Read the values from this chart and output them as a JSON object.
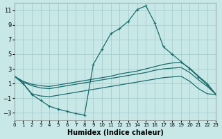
{
  "xlabel": "Humidex (Indice chaleur)",
  "bg_color": "#c8e8e8",
  "grid_color": "#a8cccc",
  "line_color": "#1a6b6b",
  "xlim": [
    0,
    23
  ],
  "ylim": [
    -4,
    12
  ],
  "yticks": [
    -3,
    -1,
    1,
    3,
    5,
    7,
    9,
    11
  ],
  "xticks": [
    0,
    1,
    2,
    3,
    4,
    5,
    6,
    7,
    8,
    9,
    10,
    11,
    12,
    13,
    14,
    15,
    16,
    17,
    18,
    19,
    20,
    21,
    22,
    23
  ],
  "main_x": [
    0,
    1,
    2,
    3,
    4,
    5,
    6,
    7,
    8,
    9,
    10,
    11,
    12,
    13,
    14,
    15,
    16,
    17,
    18,
    19,
    20,
    21,
    22,
    23
  ],
  "main_y": [
    2.0,
    1.0,
    -0.5,
    -1.3,
    -2.1,
    -2.5,
    -2.8,
    -3.1,
    -3.3,
    3.6,
    5.7,
    7.8,
    8.5,
    9.5,
    11.1,
    11.6,
    9.3,
    6.0,
    5.0,
    4.0,
    3.0,
    1.9,
    0.8,
    -0.5
  ],
  "line1_x": [
    0,
    1,
    2,
    3,
    4,
    5,
    6,
    7,
    8,
    9,
    10,
    11,
    12,
    13,
    14,
    15,
    16,
    17,
    18,
    19,
    20,
    21,
    22,
    23
  ],
  "line1_y": [
    2.0,
    1.3,
    0.9,
    0.7,
    0.6,
    0.8,
    1.0,
    1.2,
    1.4,
    1.6,
    1.8,
    2.0,
    2.3,
    2.5,
    2.7,
    3.0,
    3.3,
    3.6,
    3.8,
    3.9,
    3.1,
    2.0,
    1.0,
    -0.5
  ],
  "line2_x": [
    0,
    1,
    2,
    3,
    4,
    5,
    6,
    7,
    8,
    9,
    10,
    11,
    12,
    13,
    14,
    15,
    16,
    17,
    18,
    19,
    20,
    21,
    22,
    23
  ],
  "line2_y": [
    2.0,
    1.2,
    0.7,
    0.4,
    0.3,
    0.5,
    0.7,
    0.9,
    1.1,
    1.3,
    1.5,
    1.7,
    1.9,
    2.1,
    2.3,
    2.5,
    2.8,
    3.0,
    3.1,
    3.2,
    2.5,
    1.5,
    0.6,
    -0.5
  ],
  "line3_x": [
    0,
    1,
    2,
    3,
    4,
    5,
    6,
    7,
    8,
    9,
    10,
    11,
    12,
    13,
    14,
    15,
    16,
    17,
    18,
    19,
    20,
    21,
    22,
    23
  ],
  "line3_y": [
    2.0,
    1.0,
    -0.4,
    -0.7,
    -0.8,
    -0.6,
    -0.4,
    -0.2,
    0.0,
    0.2,
    0.4,
    0.6,
    0.8,
    1.0,
    1.2,
    1.4,
    1.6,
    1.8,
    1.9,
    2.0,
    1.3,
    0.3,
    -0.4,
    -0.5
  ]
}
